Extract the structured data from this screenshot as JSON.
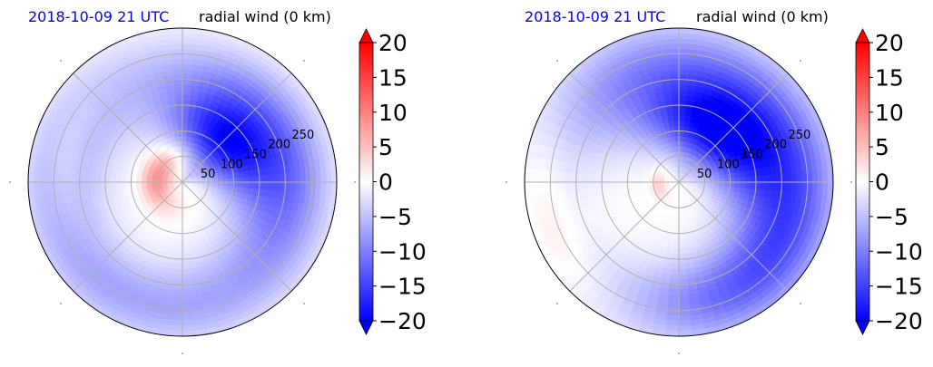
{
  "colors": {
    "negative": "#0000ff",
    "neutral": "#ffffff",
    "positive": "#ff0000",
    "grid": "#b0b0b0",
    "date_title": "#0000ff"
  },
  "chart_data": [
    {
      "type": "heatmap",
      "projection": "polar",
      "title_left": "2018-10-09 21 UTC",
      "title_right": "radial wind (0 km)",
      "radial_ticks": [
        "50",
        "100",
        "150",
        "200",
        "250"
      ],
      "radial_tick_values": [
        50,
        100,
        150,
        200,
        250
      ],
      "r_max": 300,
      "angular_grid_deg": [
        0,
        45,
        90,
        135,
        180,
        225,
        270,
        315
      ],
      "grid": true,
      "colorbar": {
        "ticks": [
          "20",
          "15",
          "10",
          "5",
          "0",
          "−5",
          "−10",
          "−15",
          "−20"
        ],
        "tick_values": [
          20,
          15,
          10,
          5,
          0,
          -5,
          -10,
          -15,
          -20
        ],
        "vmin": -20,
        "vmax": 20,
        "extend": "both"
      },
      "field_features": [
        {
          "kind": "inflow",
          "value": -17,
          "r": 110,
          "theta_deg": 45,
          "r_width": 75,
          "theta_width_deg": 55
        },
        {
          "kind": "inflow",
          "value": -11,
          "r": 200,
          "theta_deg": 15,
          "r_width": 80,
          "theta_width_deg": 85
        },
        {
          "kind": "inflow",
          "value": -6,
          "r": 250,
          "theta_deg": 240,
          "r_width": 70,
          "theta_width_deg": 80
        },
        {
          "kind": "inflow",
          "value": -4,
          "r": 210,
          "theta_deg": 160,
          "r_width": 90,
          "theta_width_deg": 60
        },
        {
          "kind": "outflow",
          "value": 9,
          "r": 50,
          "theta_deg": 170,
          "r_width": 30,
          "theta_width_deg": 70
        },
        {
          "kind": "outflow",
          "value": 3,
          "r": 230,
          "theta_deg": 170,
          "r_width": 35,
          "theta_width_deg": 35
        }
      ]
    },
    {
      "type": "heatmap",
      "projection": "polar",
      "title_left": "2018-10-09 21 UTC",
      "title_right": "radial wind (0 km)",
      "radial_ticks": [
        "50",
        "100",
        "150",
        "200",
        "250"
      ],
      "radial_tick_values": [
        50,
        100,
        150,
        200,
        250
      ],
      "r_max": 300,
      "angular_grid_deg": [
        0,
        45,
        90,
        135,
        180,
        225,
        270,
        315
      ],
      "grid": true,
      "colorbar": {
        "ticks": [
          "20",
          "15",
          "10",
          "5",
          "0",
          "−5",
          "−10",
          "−15",
          "−20"
        ],
        "tick_values": [
          20,
          15,
          10,
          5,
          0,
          -5,
          -10,
          -15,
          -20
        ],
        "vmin": -20,
        "vmax": 20,
        "extend": "both"
      },
      "field_features": [
        {
          "kind": "inflow",
          "value": -18,
          "r": 120,
          "theta_deg": 55,
          "r_width": 80,
          "theta_width_deg": 65
        },
        {
          "kind": "inflow",
          "value": -12,
          "r": 210,
          "theta_deg": 20,
          "r_width": 90,
          "theta_width_deg": 80
        },
        {
          "kind": "inflow",
          "value": -9,
          "r": 240,
          "theta_deg": 300,
          "r_width": 80,
          "theta_width_deg": 60
        },
        {
          "kind": "inflow",
          "value": -6,
          "r": 230,
          "theta_deg": 120,
          "r_width": 90,
          "theta_width_deg": 50
        },
        {
          "kind": "outflow",
          "value": 4,
          "r": 40,
          "theta_deg": 190,
          "r_width": 15,
          "theta_width_deg": 40
        },
        {
          "kind": "outflow",
          "value": 2,
          "r": 260,
          "theta_deg": 200,
          "r_width": 40,
          "theta_width_deg": 40
        }
      ]
    }
  ]
}
